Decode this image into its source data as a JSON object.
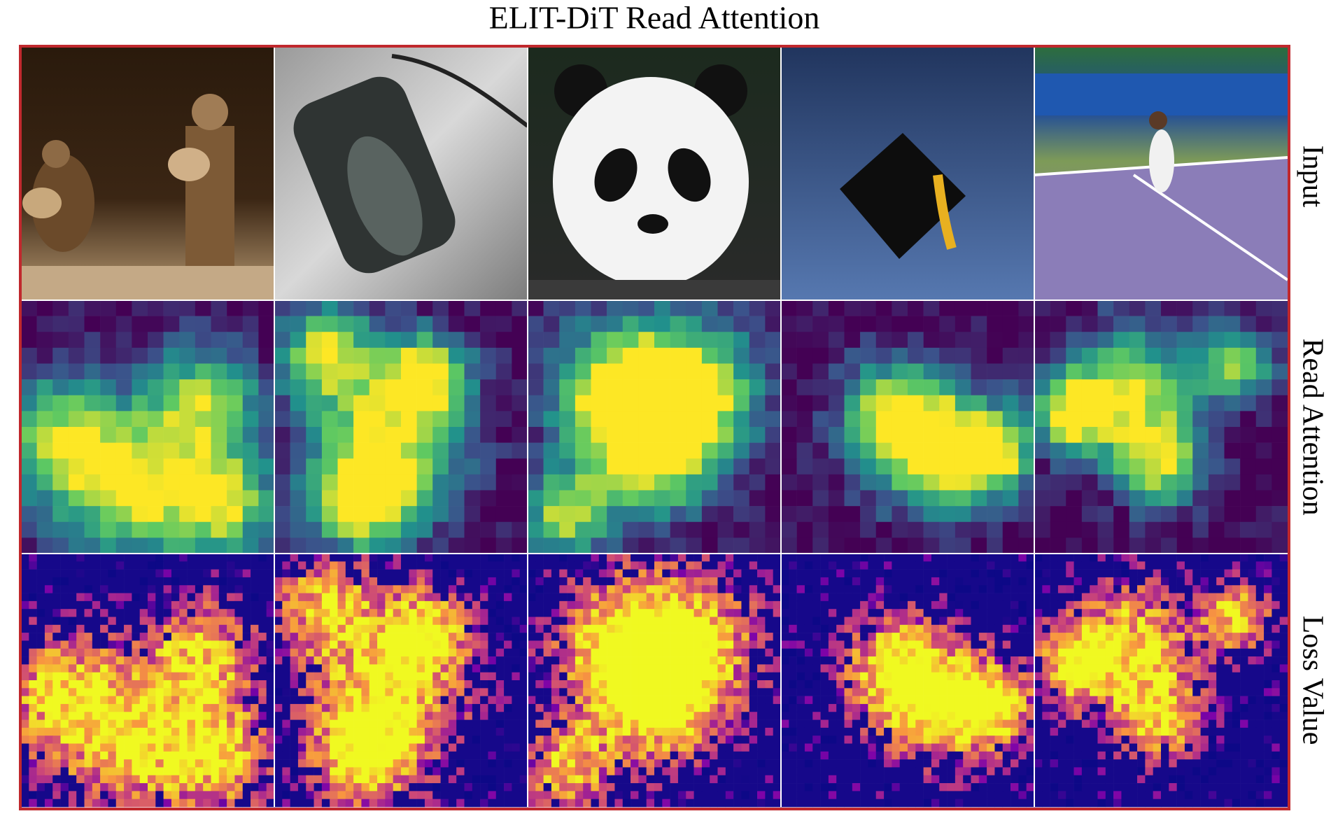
{
  "figure": {
    "title": "ELIT-DiT Read Attention",
    "row_labels": [
      "Input",
      "Read Attention",
      "Loss Value"
    ]
  }
}
